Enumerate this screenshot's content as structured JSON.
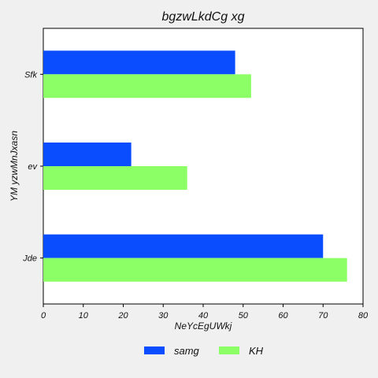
{
  "chart_data": {
    "type": "bar",
    "orientation": "horizontal",
    "title": "bgzwLkdCg xg",
    "xlabel": "NeYcEgUWkj",
    "ylabel": "YM yzwMnJxasn",
    "categories": [
      "Sfk",
      "ev",
      "Jde"
    ],
    "series": [
      {
        "name": "samg",
        "color": "#0a4dff",
        "values": [
          48,
          22,
          70
        ]
      },
      {
        "name": "KH",
        "color": "#8cff66",
        "values": [
          52,
          36,
          76
        ]
      }
    ],
    "xlim": [
      0,
      80
    ],
    "xticks": [
      0,
      10,
      20,
      30,
      40,
      50,
      60,
      70,
      80
    ],
    "grid": false,
    "legend": "bottom"
  }
}
